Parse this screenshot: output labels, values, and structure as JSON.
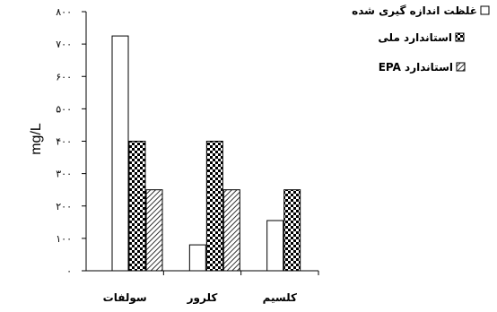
{
  "chart_data": {
    "type": "bar",
    "ylabel": "mg/L",
    "ylim": [
      0,
      800
    ],
    "yticks": [
      {
        "value": 0,
        "label": "۰"
      },
      {
        "value": 100,
        "label": "۱۰۰"
      },
      {
        "value": 200,
        "label": "۲۰۰"
      },
      {
        "value": 300,
        "label": "۳۰۰"
      },
      {
        "value": 400,
        "label": "۴۰۰"
      },
      {
        "value": 500,
        "label": "۵۰۰"
      },
      {
        "value": 600,
        "label": "۶۰۰"
      },
      {
        "value": 700,
        "label": "۷۰۰"
      },
      {
        "value": 800,
        "label": "۸۰۰"
      }
    ],
    "categories": [
      "سولفات",
      "کلرور",
      "کلسیم"
    ],
    "series": [
      {
        "name": "غلظت اندازه گیری شده",
        "pattern": "blank",
        "values": [
          725,
          80,
          155
        ]
      },
      {
        "name": "استاندارد ملی",
        "pattern": "checker",
        "values": [
          400,
          400,
          250
        ]
      },
      {
        "name": "استاندارد EPA",
        "pattern": "hatch",
        "values": [
          250,
          250,
          null
        ]
      }
    ],
    "legend_position": "top-right",
    "grid": false,
    "colors": {
      "stroke": "#000000",
      "fill": "#ffffff"
    }
  }
}
